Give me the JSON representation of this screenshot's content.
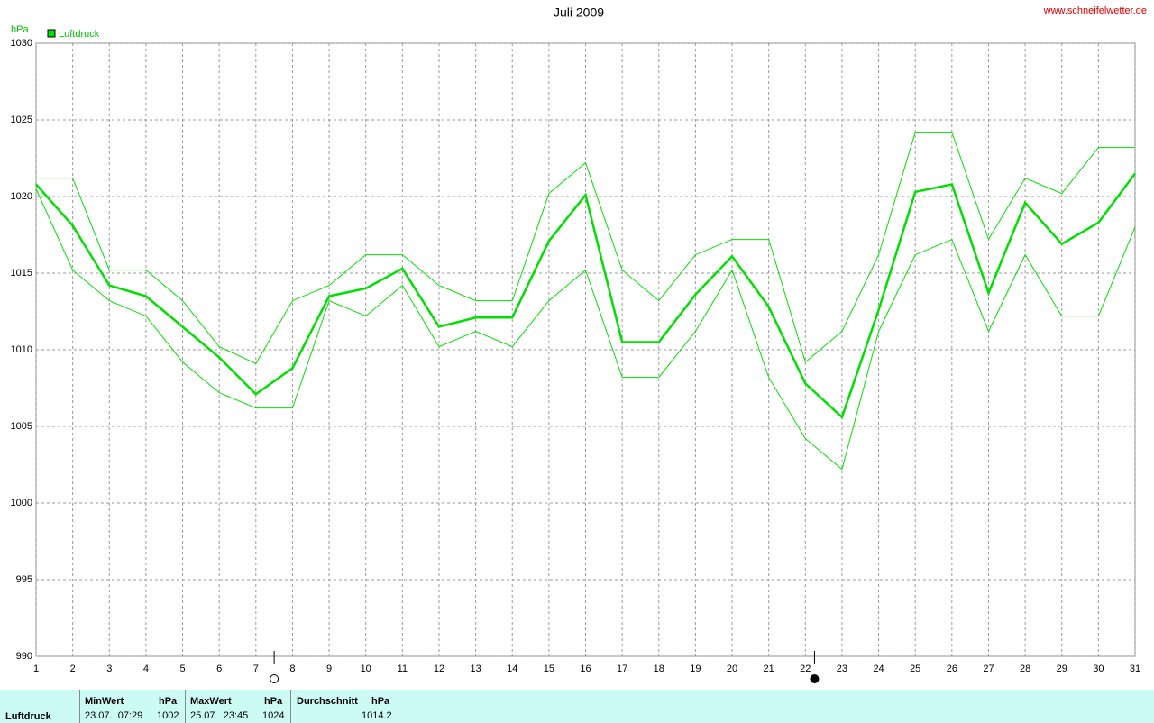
{
  "chart_data": {
    "type": "line",
    "title": "Juli 2009",
    "source": "www.schneifelwetter.de",
    "y_unit": "hPa",
    "x": [
      1,
      2,
      3,
      4,
      5,
      6,
      7,
      8,
      9,
      10,
      11,
      12,
      13,
      14,
      15,
      16,
      17,
      18,
      19,
      20,
      21,
      22,
      23,
      24,
      25,
      26,
      27,
      28,
      29,
      30,
      31
    ],
    "xlim": [
      1,
      31
    ],
    "xticks": [
      1,
      2,
      3,
      4,
      5,
      6,
      7,
      8,
      9,
      10,
      11,
      12,
      13,
      14,
      15,
      16,
      17,
      18,
      19,
      20,
      21,
      22,
      23,
      24,
      25,
      26,
      27,
      28,
      29,
      30,
      31
    ],
    "ylim": [
      990,
      1030
    ],
    "yticks": [
      990,
      995,
      1000,
      1005,
      1010,
      1015,
      1020,
      1025,
      1030
    ],
    "grid": true,
    "series": [
      {
        "name": "Luftdruck",
        "color": "#00e000",
        "width": 2.5,
        "values": [
          1020.8,
          1018.1,
          1014.2,
          1013.5,
          1011.5,
          1009.5,
          1007.1,
          1008.8,
          1013.5,
          1014.0,
          1015.3,
          1011.5,
          1012.1,
          1012.1,
          1017.1,
          1020.1,
          1010.5,
          1010.5,
          1013.6,
          1016.1,
          1012.8,
          1007.8,
          1005.6,
          1012.6,
          1020.3,
          1020.8,
          1013.7,
          1019.6,
          1016.9,
          1018.3,
          1021.5
        ]
      },
      {
        "color": "#00e000",
        "width": 1,
        "values": [
          1021.2,
          1021.2,
          1015.2,
          1015.2,
          1013.2,
          1010.2,
          1009.1,
          1013.2,
          1014.2,
          1016.2,
          1016.2,
          1014.2,
          1013.2,
          1013.2,
          1020.2,
          1022.2,
          1015.2,
          1013.2,
          1016.2,
          1017.2,
          1017.2,
          1009.2,
          1011.2,
          1016.2,
          1024.2,
          1024.2,
          1017.2,
          1021.2,
          1020.2,
          1023.2,
          1023.2
        ]
      },
      {
        "color": "#00e000",
        "width": 1,
        "values": [
          1020.5,
          1015.2,
          1013.2,
          1012.2,
          1009.2,
          1007.2,
          1006.2,
          1006.2,
          1013.2,
          1012.2,
          1014.2,
          1010.2,
          1011.2,
          1010.2,
          1013.2,
          1015.2,
          1008.2,
          1008.2,
          1011.2,
          1015.2,
          1008.2,
          1004.2,
          1002.2,
          1011.2,
          1016.2,
          1017.2,
          1011.2,
          1016.2,
          1012.2,
          1012.2,
          1018.0
        ]
      }
    ],
    "moon_markers": [
      {
        "x": 7.5,
        "filled": false
      },
      {
        "x": 22.25,
        "filled": true
      }
    ]
  },
  "stats": {
    "label": "Luftdruck",
    "min": {
      "title": "MinWert",
      "unit": "hPa",
      "time": "23.07.  07:29",
      "value": 1002
    },
    "max": {
      "title": "MaxWert",
      "unit": "hPa",
      "time": "25.07.  23:45",
      "value": 1024
    },
    "avg": {
      "title": "Durchschnitt",
      "unit": "hPa",
      "value": 1014.2
    }
  }
}
